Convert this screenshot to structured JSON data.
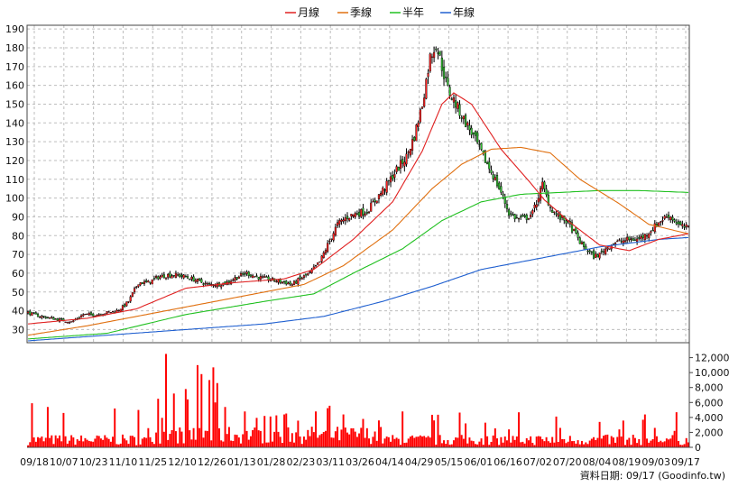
{
  "chart_data": {
    "type": "candlestick",
    "legend": [
      {
        "name": "月線",
        "color": "#e02020"
      },
      {
        "name": "季線",
        "color": "#e07010"
      },
      {
        "name": "半年",
        "color": "#20c020"
      },
      {
        "name": "年線",
        "color": "#2060d0"
      }
    ],
    "price_axis": {
      "ylim": [
        23,
        192
      ],
      "ticks": [
        30,
        40,
        50,
        60,
        70,
        80,
        90,
        100,
        110,
        120,
        130,
        140,
        150,
        160,
        170,
        180,
        190
      ]
    },
    "volume_axis": {
      "ylim": [
        0,
        14000
      ],
      "ticks": [
        0,
        2000,
        4000,
        6000,
        8000,
        10000,
        12000
      ],
      "tick_labels": [
        "0",
        "2,000",
        "4,000",
        "6,000",
        "8,000",
        "10,000",
        "12,000"
      ]
    },
    "date_labels": [
      "09/18",
      "10/07",
      "10/23",
      "11/10",
      "11/25",
      "12/10",
      "12/26",
      "01/13",
      "01/28",
      "02/23",
      "03/11",
      "03/26",
      "04/14",
      "04/29",
      "05/15",
      "06/01",
      "06/16",
      "07/02",
      "07/20",
      "08/04",
      "08/19",
      "09/03",
      "09/17"
    ],
    "close_anchors": [
      [
        0,
        39
      ],
      [
        6,
        37
      ],
      [
        12,
        36
      ],
      [
        17,
        35
      ],
      [
        22,
        34
      ],
      [
        28,
        38
      ],
      [
        35,
        38
      ],
      [
        40,
        39
      ],
      [
        45,
        40
      ],
      [
        48,
        42
      ],
      [
        51,
        45
      ],
      [
        56,
        55
      ],
      [
        61,
        55
      ],
      [
        66,
        58
      ],
      [
        71,
        59
      ],
      [
        76,
        59
      ],
      [
        80,
        58
      ],
      [
        86,
        56
      ],
      [
        91,
        54
      ],
      [
        96,
        54
      ],
      [
        101,
        55
      ],
      [
        106,
        58
      ],
      [
        111,
        60
      ],
      [
        116,
        58
      ],
      [
        121,
        57
      ],
      [
        126,
        56
      ],
      [
        131,
        55
      ],
      [
        134,
        54
      ],
      [
        138,
        57
      ],
      [
        143,
        60
      ],
      [
        148,
        66
      ],
      [
        152,
        75
      ],
      [
        157,
        86
      ],
      [
        162,
        90
      ],
      [
        167,
        92
      ],
      [
        172,
        93
      ],
      [
        177,
        100
      ],
      [
        182,
        107
      ],
      [
        187,
        115
      ],
      [
        192,
        122
      ],
      [
        196,
        133
      ],
      [
        200,
        150
      ],
      [
        204,
        175
      ],
      [
        207,
        182
      ],
      [
        210,
        170
      ],
      [
        213,
        158
      ],
      [
        217,
        150
      ],
      [
        221,
        142
      ],
      [
        226,
        133
      ],
      [
        231,
        122
      ],
      [
        236,
        112
      ],
      [
        240,
        103
      ],
      [
        244,
        92
      ],
      [
        248,
        89
      ],
      [
        252,
        89
      ],
      [
        256,
        92
      ],
      [
        261,
        107
      ],
      [
        265,
        95
      ],
      [
        269,
        90
      ],
      [
        273,
        88
      ],
      [
        277,
        82
      ],
      [
        281,
        75
      ],
      [
        284,
        72
      ],
      [
        287,
        69
      ],
      [
        290,
        70
      ],
      [
        293,
        73
      ],
      [
        297,
        76
      ],
      [
        301,
        77
      ],
      [
        305,
        78
      ],
      [
        309,
        78
      ],
      [
        313,
        80
      ],
      [
        317,
        84
      ],
      [
        321,
        88
      ],
      [
        325,
        91
      ],
      [
        328,
        88
      ],
      [
        331,
        85
      ],
      [
        335,
        84
      ]
    ],
    "ma_monthly": [
      [
        0,
        33
      ],
      [
        30,
        36
      ],
      [
        55,
        41
      ],
      [
        80,
        52
      ],
      [
        105,
        55
      ],
      [
        130,
        57
      ],
      [
        145,
        62
      ],
      [
        165,
        78
      ],
      [
        185,
        98
      ],
      [
        200,
        125
      ],
      [
        210,
        150
      ],
      [
        216,
        156
      ],
      [
        225,
        150
      ],
      [
        240,
        126
      ],
      [
        255,
        108
      ],
      [
        262,
        99
      ],
      [
        275,
        87
      ],
      [
        290,
        75
      ],
      [
        305,
        72
      ],
      [
        320,
        78
      ],
      [
        335,
        81
      ]
    ],
    "ma_quarterly": [
      [
        0,
        27
      ],
      [
        30,
        32
      ],
      [
        60,
        38
      ],
      [
        90,
        44
      ],
      [
        120,
        50
      ],
      [
        140,
        54
      ],
      [
        160,
        64
      ],
      [
        185,
        83
      ],
      [
        205,
        105
      ],
      [
        220,
        118
      ],
      [
        235,
        126
      ],
      [
        250,
        127
      ],
      [
        265,
        124
      ],
      [
        280,
        110
      ],
      [
        300,
        97
      ],
      [
        315,
        86
      ],
      [
        335,
        81
      ]
    ],
    "ma_halfyear": [
      [
        0,
        25
      ],
      [
        40,
        28
      ],
      [
        80,
        38
      ],
      [
        120,
        45
      ],
      [
        145,
        49
      ],
      [
        165,
        60
      ],
      [
        190,
        73
      ],
      [
        210,
        88
      ],
      [
        230,
        98
      ],
      [
        250,
        102
      ],
      [
        270,
        103
      ],
      [
        290,
        104
      ],
      [
        310,
        104
      ],
      [
        335,
        103
      ]
    ],
    "ma_yearly": [
      [
        0,
        24
      ],
      [
        40,
        27
      ],
      [
        80,
        30
      ],
      [
        120,
        33
      ],
      [
        150,
        37
      ],
      [
        180,
        45
      ],
      [
        205,
        53
      ],
      [
        230,
        62
      ],
      [
        260,
        68
      ],
      [
        290,
        74
      ],
      [
        320,
        78
      ],
      [
        335,
        79
      ]
    ],
    "date_note": "資料日期: 09/17  (Goodinfo.tw)"
  }
}
